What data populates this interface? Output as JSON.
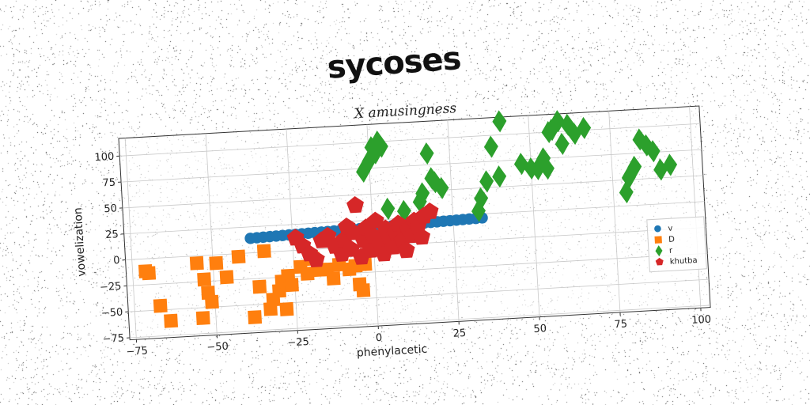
{
  "chart_data": {
    "type": "scatter",
    "title": "sycoses",
    "subtitle": "X amusingness",
    "xlabel": "phenylacetic",
    "ylabel": "vowelization",
    "xlim": [
      -77,
      103
    ],
    "ylim": [
      -77,
      117
    ],
    "xticks": [
      -75,
      -50,
      -25,
      0,
      25,
      50,
      75,
      100
    ],
    "yticks": [
      -75,
      -50,
      -25,
      0,
      25,
      50,
      75,
      100
    ],
    "xtick_labels": [
      "−75",
      "−50",
      "−25",
      "0",
      "25",
      "50",
      "75",
      "100"
    ],
    "ytick_labels": [
      "−75",
      "−50",
      "−25",
      "0",
      "25",
      "50",
      "75",
      "100"
    ],
    "grid": true,
    "legend_position": "lower-right",
    "colors": {
      "v": "#1f77b4",
      "D": "#ff7f0e",
      "r": "#2ca02c",
      "khutba": "#d62728"
    },
    "series": [
      {
        "name": "v",
        "marker": "circle",
        "x": [
          -38,
          -36,
          -34,
          -32,
          -30,
          -28,
          -26,
          -24,
          -22,
          -20,
          -18,
          -16,
          -14,
          -12,
          -10,
          -8,
          -6,
          -4,
          -2,
          0,
          2,
          4,
          6,
          8,
          10,
          12,
          14,
          16,
          18,
          20,
          22,
          24,
          26,
          28,
          30,
          32,
          34
        ],
        "y": [
          14,
          14.2,
          14.4,
          14.6,
          14.8,
          15,
          15.2,
          15.4,
          15.6,
          15.8,
          16,
          16.2,
          16.4,
          16.6,
          16.8,
          17,
          17.2,
          17.4,
          17.6,
          17.8,
          18,
          18.2,
          18.4,
          18.6,
          18.8,
          19,
          19.2,
          19.4,
          19.6,
          19.8,
          20,
          20.2,
          20.4,
          20.6,
          20.8,
          21,
          21.2
        ]
      },
      {
        "name": "D",
        "marker": "square",
        "x": [
          -71,
          -70,
          -67,
          -64,
          -55,
          -54,
          -53,
          -52,
          -51,
          -49,
          -46,
          -42,
          -38,
          -36,
          -34,
          -33,
          -32,
          -30,
          -29,
          -28,
          -27,
          -26,
          -23,
          -21,
          -19,
          -17,
          -15,
          -13,
          -11,
          -8,
          -6,
          -5,
          -4,
          -3
        ],
        "y": [
          -12,
          -14,
          -46,
          -61,
          -7,
          -60,
          -23,
          -36,
          -45,
          -8,
          -22,
          -3,
          -62,
          -33,
          1,
          -55,
          -46,
          -38,
          -29,
          -56,
          -24,
          -33,
          -16,
          -23,
          -9,
          -20,
          -20,
          -29,
          -16,
          -21,
          -18,
          -36,
          -42,
          -17
        ]
      },
      {
        "name": "r",
        "marker": "diamond",
        "x": [
          -2,
          0,
          1,
          2,
          3,
          4,
          5,
          10,
          15,
          16,
          18,
          19,
          20,
          22,
          33,
          34,
          36,
          38,
          40,
          41,
          47,
          50,
          52,
          54,
          55,
          56,
          57,
          59,
          60,
          62,
          64,
          67,
          79,
          80,
          82,
          84,
          86,
          88,
          90,
          93
        ],
        "y": [
          72,
          82,
          95,
          89,
          100,
          95,
          35,
          32,
          40,
          48,
          86,
          62,
          58,
          52,
          28,
          40,
          56,
          89,
          60,
          113,
          71,
          66,
          65,
          75,
          65,
          100,
          102,
          110,
          88,
          106,
          97,
          102,
          38,
          52,
          62,
          88,
          82,
          76,
          58,
          62
        ]
      },
      {
        "name": "khutba",
        "marker": "pentagon",
        "x": [
          -24,
          -22,
          -20,
          -18,
          -16,
          -14,
          -12,
          -10,
          -9,
          -8,
          -7,
          -6,
          -5,
          -4,
          -3,
          -2,
          -1,
          0,
          1,
          2,
          3,
          4,
          5,
          6,
          7,
          8,
          9,
          10,
          11,
          12,
          13,
          14,
          15,
          16,
          18
        ],
        "y": [
          12,
          4,
          -4,
          -10,
          8,
          12,
          2,
          -6,
          8,
          20,
          -2,
          14,
          40,
          -10,
          6,
          18,
          -4,
          10,
          24,
          2,
          -8,
          16,
          6,
          -2,
          12,
          20,
          4,
          -6,
          14,
          8,
          22,
          16,
          6,
          26,
          30
        ]
      }
    ]
  }
}
